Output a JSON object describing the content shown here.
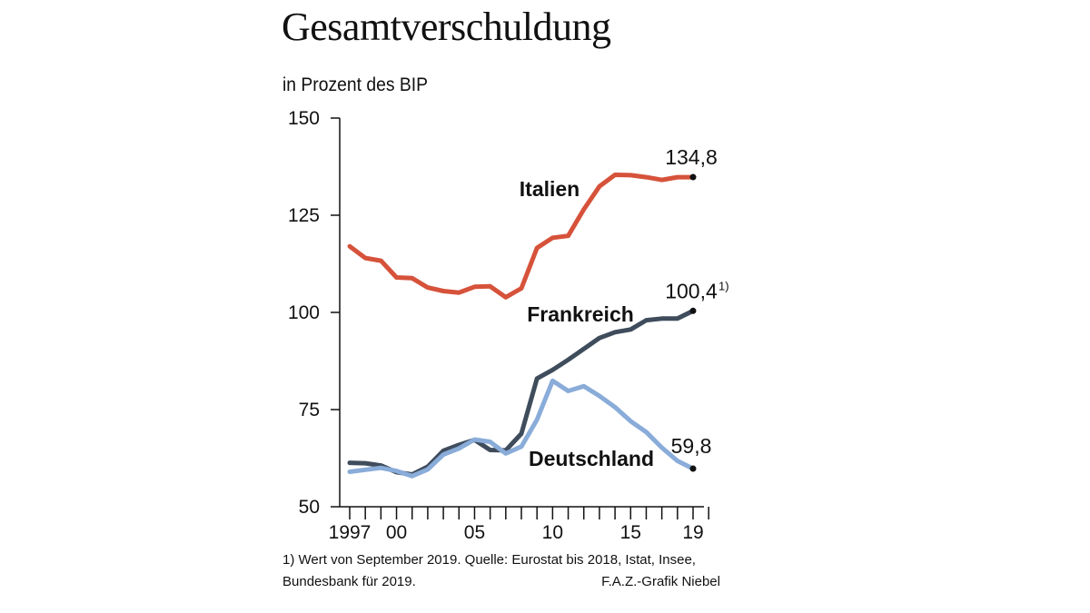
{
  "chart_data": {
    "type": "line",
    "title": "Gesamtverschuldung",
    "subtitle": "in Prozent des BIP",
    "xlabel": "",
    "ylabel": "",
    "x": [
      1997,
      1998,
      1999,
      2000,
      2001,
      2002,
      2003,
      2004,
      2005,
      2006,
      2007,
      2008,
      2009,
      2010,
      2011,
      2012,
      2013,
      2014,
      2015,
      2016,
      2017,
      2018,
      2019
    ],
    "xlim": [
      1997,
      2020
    ],
    "ylim": [
      50,
      150
    ],
    "y_ticks": [
      50,
      75,
      100,
      125,
      150
    ],
    "y_tick_labels": [
      "50",
      "75",
      "100",
      "125",
      "150"
    ],
    "x_ticks": [
      1997,
      2000,
      2005,
      2010,
      2015,
      2019
    ],
    "x_tick_labels": [
      "1997",
      "00",
      "05",
      "10",
      "15",
      "19"
    ],
    "grid": false,
    "series": [
      {
        "name": "Italien",
        "color": "#d6523a",
        "values": [
          117.0,
          114.0,
          113.3,
          109.0,
          108.8,
          106.4,
          105.5,
          105.1,
          106.6,
          106.7,
          103.9,
          106.2,
          116.6,
          119.2,
          119.7,
          126.5,
          132.4,
          135.4,
          135.3,
          134.8,
          134.1,
          134.8,
          134.8
        ],
        "end_label": "134,8"
      },
      {
        "name": "Frankreich",
        "color": "#3f4c5c",
        "values": [
          61.3,
          61.2,
          60.6,
          58.9,
          58.3,
          60.3,
          64.4,
          65.9,
          67.2,
          64.6,
          64.5,
          68.8,
          83.0,
          85.2,
          87.8,
          90.6,
          93.4,
          94.9,
          95.6,
          98.0,
          98.4,
          98.4,
          100.4
        ],
        "end_label": "100,4",
        "end_label_footnote": "1)"
      },
      {
        "name": "Deutschland",
        "color": "#89acd9",
        "values": [
          59.0,
          59.5,
          60.0,
          59.2,
          57.9,
          59.6,
          63.4,
          65.0,
          67.3,
          66.7,
          63.7,
          65.5,
          72.4,
          82.4,
          79.8,
          81.0,
          78.5,
          75.6,
          72.0,
          69.2,
          65.2,
          61.8,
          59.8
        ],
        "end_label": "59,8"
      }
    ]
  },
  "footer": {
    "note_line1": "1) Wert von September 2019. Quelle: Eurostat bis 2018, Istat, Insee,",
    "note_line2": "Bundesbank für 2019.",
    "credit": "F.A.Z.-Grafik Niebel"
  }
}
